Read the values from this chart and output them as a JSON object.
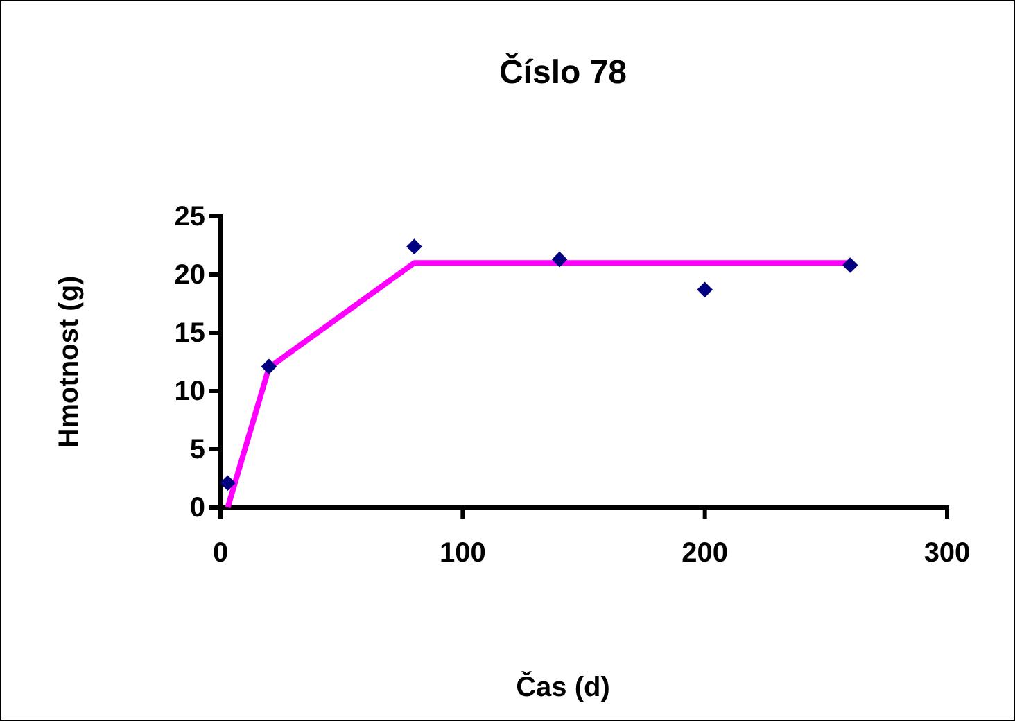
{
  "chart_data": {
    "type": "scatter",
    "title": "Číslo 78",
    "xlabel": "Čas (d)",
    "ylabel": "Hmotnost (g)",
    "xlim": [
      0,
      300
    ],
    "xticks": [
      0,
      100,
      200,
      300
    ],
    "ylim": [
      0,
      25
    ],
    "yticks": [
      0,
      5,
      10,
      15,
      20,
      25
    ],
    "grid": false,
    "series": [
      {
        "color": "#000080",
        "marker": "diamond",
        "x": [
          3,
          20,
          80,
          140,
          200,
          260
        ],
        "values": [
          2.1,
          12.1,
          22.4,
          21.3,
          18.7,
          20.8
        ]
      },
      {
        "type": "line",
        "color": "#ff00ff",
        "marker": "none",
        "line_style": "solid",
        "x": [
          3,
          20,
          80,
          260
        ],
        "values": [
          0,
          12,
          21,
          21
        ]
      }
    ]
  }
}
